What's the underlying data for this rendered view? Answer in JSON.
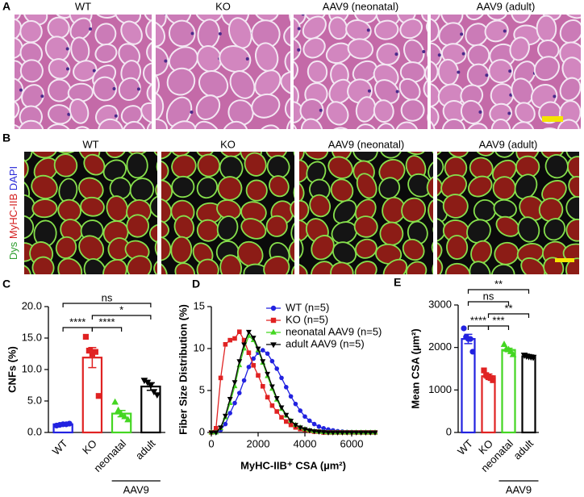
{
  "panels": {
    "A": {
      "label": "A",
      "images": [
        "WT",
        "KO",
        "AAV9 (neonatal)",
        "AAV9 (adult)"
      ]
    },
    "B": {
      "label": "B",
      "images": [
        "WT",
        "KO",
        "AAV9 (neonatal)",
        "AAV9 (adult)"
      ],
      "stain": [
        "Dys",
        "MyHC-IIB",
        "DAPI"
      ],
      "stain_colors": [
        "#2f9e2f",
        "#d42020",
        "#2a2ad8"
      ]
    }
  },
  "chart_data": [
    {
      "panel": "C",
      "type": "bar",
      "ylabel": "CNFs (%)",
      "categories": [
        "WT",
        "KO",
        "neonatal",
        "adult"
      ],
      "values": [
        1.3,
        11.9,
        3.0,
        7.3
      ],
      "errors": [
        0.1,
        1.6,
        0.5,
        0.6
      ],
      "points": [
        [
          1.1,
          1.2,
          1.3,
          1.3,
          1.4
        ],
        [
          15.2,
          13.0,
          12.5,
          12.8,
          5.8
        ],
        [
          4.8,
          3.5,
          2.8,
          2.5,
          2.0
        ],
        [
          8.3,
          8.0,
          7.5,
          6.5,
          6.0
        ]
      ],
      "colors": [
        "#2222e0",
        "#e02222",
        "#44d622",
        "#000000"
      ],
      "markers": [
        "circle",
        "square",
        "triangle",
        "triangle-down"
      ],
      "ylim": [
        0,
        20
      ],
      "yticks": [
        {
          "value": 0,
          "label": "0.0"
        },
        {
          "value": 5,
          "label": "5.0"
        },
        {
          "value": 10,
          "label": "10.0"
        },
        {
          "value": 15,
          "label": "15.0"
        },
        {
          "value": 20,
          "label": "20.0"
        }
      ],
      "group_label": "AAV9",
      "brackets": [
        {
          "from": "WT",
          "to": "KO",
          "label": "****"
        },
        {
          "from": "KO",
          "to": "neonatal",
          "label": "****"
        },
        {
          "from": "KO",
          "to": "adult",
          "label": "*"
        },
        {
          "from": "WT",
          "to": "adult",
          "label": "ns"
        }
      ]
    },
    {
      "panel": "D",
      "type": "line",
      "ylabel": "Fiber Size Distribution (%)",
      "xlabel": "MyHC-IIB⁺ CSA (µm²)",
      "x": [
        0,
        200,
        400,
        600,
        800,
        1000,
        1200,
        1400,
        1600,
        1800,
        2000,
        2200,
        2400,
        2600,
        2800,
        3000,
        3200,
        3400,
        3600,
        3800,
        4000,
        4200,
        4400,
        4600,
        4800,
        5000,
        5200,
        5400,
        5600,
        5800,
        6000,
        6200,
        6400,
        6600,
        6800,
        7000
      ],
      "series": [
        {
          "name": "WT (n=5)",
          "color": "#2222e0",
          "marker": "circle",
          "values": [
            0,
            0,
            0.3,
            1,
            2.3,
            3.5,
            4.7,
            6.2,
            7.8,
            8.8,
            9.5,
            9.8,
            9.4,
            8.5,
            7.6,
            6.5,
            5.4,
            4.3,
            3.4,
            2.6,
            1.9,
            1.4,
            1,
            0.7,
            0.5,
            0.35,
            0.25,
            0.15,
            0.1,
            0.06,
            0.04,
            0.02,
            0.01,
            0,
            0,
            0
          ]
        },
        {
          "name": "KO (n=5)",
          "color": "#e02222",
          "marker": "square",
          "values": [
            0,
            0.5,
            6.5,
            10.5,
            11,
            11.2,
            12,
            11,
            9.5,
            8,
            6.8,
            5.5,
            4.2,
            3.2,
            2.5,
            1.8,
            1.3,
            0.9,
            0.6,
            0.4,
            0.3,
            0.2,
            0.1,
            0.1,
            0,
            0,
            0,
            0,
            0,
            0,
            0,
            0,
            0,
            0,
            0,
            0
          ]
        },
        {
          "name": "neonatal AAV9 (n=5)",
          "color": "#44d622",
          "marker": "triangle",
          "values": [
            0,
            0,
            0.5,
            1.8,
            3.5,
            5.5,
            8,
            10,
            11.5,
            11,
            9.8,
            8.3,
            6.7,
            5.2,
            3.9,
            2.8,
            2,
            1.4,
            0.9,
            0.6,
            0.4,
            0.25,
            0.15,
            0.1,
            0.05,
            0,
            0,
            0,
            0,
            0,
            0,
            0,
            0,
            0,
            0,
            0
          ]
        },
        {
          "name": "adult AAV9 (n=5)",
          "color": "#000000",
          "marker": "triangle-down",
          "values": [
            0,
            0,
            0.6,
            2,
            4,
            6,
            8.5,
            10.5,
            12,
            11.3,
            10,
            8.5,
            7,
            5.5,
            4.1,
            3,
            2.1,
            1.4,
            0.9,
            0.6,
            0.4,
            0.25,
            0.15,
            0.1,
            0.05,
            0,
            0,
            0,
            0,
            0,
            0,
            0,
            0,
            0,
            0,
            0
          ]
        }
      ],
      "xlim": [
        0,
        7000
      ],
      "xticks": [
        0,
        2000,
        4000,
        6000
      ],
      "ylim": [
        0,
        15
      ],
      "yticks": [
        0,
        5,
        10,
        15
      ],
      "legend": "upper right"
    },
    {
      "panel": "E",
      "type": "bar",
      "ylabel": "Mean CSA (µm²)",
      "categories": [
        "WT",
        "KO",
        "neonatal",
        "adult"
      ],
      "values": [
        2200,
        1324,
        1942,
        1792
      ],
      "errors": [
        110,
        50,
        40,
        10
      ],
      "points": [
        [
          2450,
          2250,
          2200,
          2200,
          1900
        ],
        [
          1460,
          1350,
          1300,
          1280,
          1230
        ],
        [
          2070,
          1960,
          1950,
          1900,
          1830
        ],
        [
          1820,
          1800,
          1790,
          1780,
          1770
        ]
      ],
      "colors": [
        "#2222e0",
        "#e02222",
        "#44d622",
        "#000000"
      ],
      "markers": [
        "circle",
        "square",
        "triangle",
        "triangle-down"
      ],
      "ylim": [
        0,
        3000
      ],
      "yticks": [
        0,
        1000,
        2000,
        3000
      ],
      "group_label": "AAV9",
      "brackets": [
        {
          "from": "WT",
          "to": "KO",
          "label": "****"
        },
        {
          "from": "KO",
          "to": "neonatal",
          "label": "***"
        },
        {
          "from": "KO",
          "to": "adult",
          "label": "**"
        },
        {
          "from": "WT",
          "to": "neonatal",
          "label": "ns"
        },
        {
          "from": "WT",
          "to": "adult",
          "label": "**"
        }
      ]
    }
  ]
}
